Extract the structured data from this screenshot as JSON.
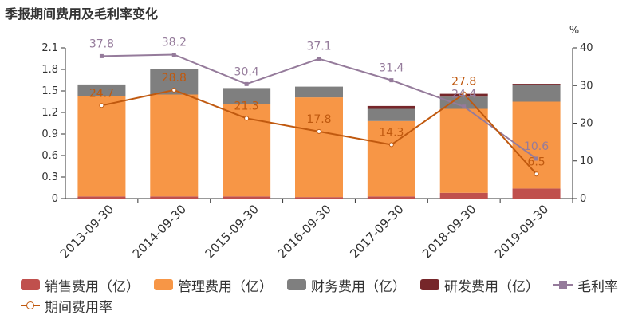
{
  "chart_data": {
    "type": "bar",
    "title": "季报期间费用及毛利率变化",
    "categories": [
      "2013-09-30",
      "2014-09-30",
      "2015-09-30",
      "2016-09-30",
      "2017-09-30",
      "2018-09-30",
      "2019-09-30"
    ],
    "series": [
      {
        "name": "销售费用（亿）",
        "type": "bar",
        "axis": "left",
        "color": "#c0504d",
        "values": [
          0.03,
          0.03,
          0.03,
          0.02,
          0.03,
          0.08,
          0.14
        ]
      },
      {
        "name": "管理费用（亿）",
        "type": "bar",
        "axis": "left",
        "color": "#f79646",
        "values": [
          1.4,
          1.42,
          1.29,
          1.39,
          1.05,
          1.17,
          1.21
        ]
      },
      {
        "name": "财务费用（亿）",
        "type": "bar",
        "axis": "left",
        "color": "#7f7f7f",
        "values": [
          0.16,
          0.36,
          0.22,
          0.15,
          0.17,
          0.17,
          0.24
        ]
      },
      {
        "name": "研发费用（亿）",
        "type": "bar",
        "axis": "left",
        "color": "#76262a",
        "values": [
          0.0,
          0.0,
          0.0,
          0.0,
          0.04,
          0.04,
          0.01
        ]
      },
      {
        "name": "毛利率",
        "type": "line",
        "axis": "right",
        "color": "#957b9b",
        "marker": "square",
        "values": [
          37.8,
          38.2,
          30.4,
          37.1,
          31.4,
          24.4,
          10.6
        ]
      },
      {
        "name": "期间费用率",
        "type": "line",
        "axis": "right",
        "color": "#c0590f",
        "marker": "circle",
        "values": [
          24.7,
          28.8,
          21.3,
          17.8,
          14.3,
          27.8,
          6.5
        ]
      }
    ],
    "y_left": {
      "min": 0,
      "max": 2.1,
      "ticks": [
        "0",
        "0.3",
        "0.6",
        "0.9",
        "1.2",
        "1.5",
        "1.8",
        "2.1"
      ]
    },
    "y_right": {
      "min": 0,
      "max": 40,
      "unit": "%",
      "ticks": [
        "0",
        "10",
        "20",
        "30",
        "40"
      ]
    },
    "grid": false,
    "legend_position": "bottom"
  }
}
